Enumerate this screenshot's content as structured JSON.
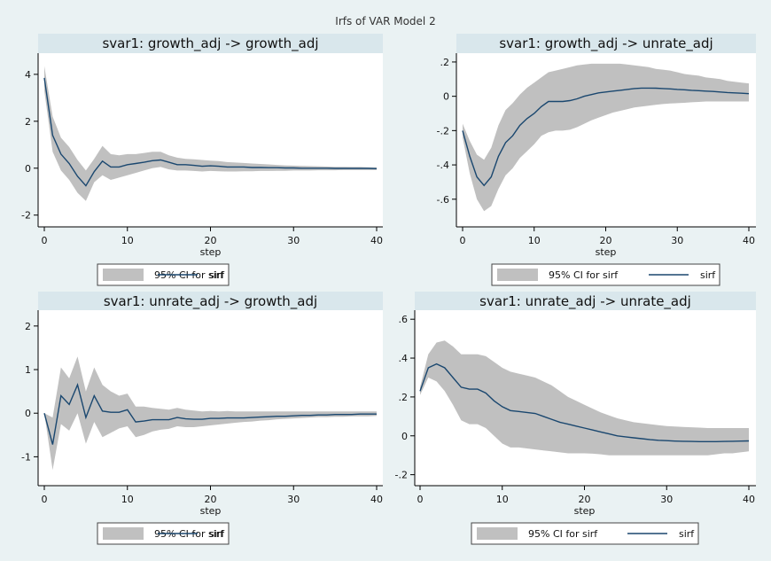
{
  "figure_title": "Irfs of VAR Model 2",
  "colors": {
    "background": "#eaf2f3",
    "plot_bg": "#ffffff",
    "title_band": "#d9e7ec",
    "band": "#c0c0c0",
    "line": "#1a476f",
    "axis": "#000000"
  },
  "chart_data": [
    {
      "type": "line",
      "title": "svar1: growth_adj -> growth_adj",
      "xlabel": "step",
      "ylabel": "",
      "xlim": [
        0,
        40
      ],
      "ylim": [
        -2.2,
        4.6
      ],
      "xticks": [
        0,
        10,
        20,
        30,
        40
      ],
      "yticks": [
        -2,
        0,
        2,
        4
      ],
      "ytick_labels": [
        "-2",
        "0",
        "2",
        "4"
      ],
      "x": [
        0,
        1,
        2,
        3,
        4,
        5,
        6,
        7,
        8,
        9,
        10,
        11,
        12,
        13,
        14,
        15,
        16,
        17,
        18,
        19,
        20,
        21,
        22,
        23,
        24,
        25,
        26,
        27,
        28,
        29,
        30,
        31,
        32,
        33,
        34,
        35,
        36,
        37,
        38,
        39,
        40
      ],
      "series": [
        {
          "name": "sirf",
          "values": [
            3.85,
            1.4,
            0.6,
            0.2,
            -0.35,
            -0.75,
            -0.15,
            0.3,
            0.05,
            0.05,
            0.15,
            0.2,
            0.25,
            0.32,
            0.35,
            0.25,
            0.15,
            0.15,
            0.12,
            0.08,
            0.1,
            0.08,
            0.05,
            0.05,
            0.05,
            0.03,
            0.03,
            0.02,
            0.02,
            0.01,
            0.01,
            0.0,
            0.0,
            0.0,
            0.0,
            -0.01,
            -0.01,
            -0.01,
            -0.01,
            -0.01,
            -0.02
          ]
        },
        {
          "name": "95% CI for sirf",
          "role": "band",
          "lower": [
            3.3,
            0.7,
            -0.1,
            -0.5,
            -1.05,
            -1.4,
            -0.6,
            -0.3,
            -0.5,
            -0.4,
            -0.3,
            -0.2,
            -0.1,
            0.0,
            0.05,
            -0.05,
            -0.1,
            -0.1,
            -0.12,
            -0.14,
            -0.12,
            -0.13,
            -0.14,
            -0.14,
            -0.13,
            -0.13,
            -0.12,
            -0.12,
            -0.11,
            -0.11,
            -0.1,
            -0.1,
            -0.1,
            -0.09,
            -0.09,
            -0.09,
            -0.08,
            -0.08,
            -0.08,
            -0.08,
            -0.08
          ],
          "upper": [
            4.35,
            2.2,
            1.3,
            0.9,
            0.35,
            -0.1,
            0.4,
            0.95,
            0.6,
            0.55,
            0.6,
            0.6,
            0.65,
            0.7,
            0.7,
            0.55,
            0.45,
            0.4,
            0.38,
            0.35,
            0.32,
            0.3,
            0.26,
            0.24,
            0.22,
            0.2,
            0.18,
            0.16,
            0.14,
            0.12,
            0.11,
            0.1,
            0.09,
            0.08,
            0.07,
            0.06,
            0.06,
            0.05,
            0.05,
            0.04,
            0.04
          ]
        }
      ],
      "legend": {
        "position": "bottom",
        "items": [
          "95% CI for sirf",
          "sirf"
        ]
      }
    },
    {
      "type": "line",
      "title": "svar1: growth_adj -> unrate_adj",
      "xlabel": "step",
      "ylabel": "",
      "xlim": [
        0,
        40
      ],
      "ylim": [
        -0.72,
        0.21
      ],
      "xticks": [
        0,
        10,
        20,
        30,
        40
      ],
      "yticks": [
        -0.6,
        -0.4,
        -0.2,
        0,
        0.2
      ],
      "ytick_labels": [
        "-.6",
        "-.4",
        "-.2",
        "0",
        ".2"
      ],
      "x": [
        0,
        1,
        2,
        3,
        4,
        5,
        6,
        7,
        8,
        9,
        10,
        11,
        12,
        13,
        14,
        15,
        16,
        17,
        18,
        19,
        20,
        21,
        22,
        23,
        24,
        25,
        26,
        27,
        28,
        29,
        30,
        31,
        32,
        33,
        34,
        35,
        36,
        37,
        38,
        39,
        40
      ],
      "series": [
        {
          "name": "sirf",
          "values": [
            -0.2,
            -0.35,
            -0.47,
            -0.52,
            -0.47,
            -0.35,
            -0.27,
            -0.23,
            -0.17,
            -0.13,
            -0.1,
            -0.06,
            -0.03,
            -0.03,
            -0.03,
            -0.025,
            -0.015,
            0.0,
            0.01,
            0.02,
            0.025,
            0.03,
            0.035,
            0.04,
            0.045,
            0.048,
            0.048,
            0.047,
            0.045,
            0.043,
            0.04,
            0.038,
            0.035,
            0.033,
            0.03,
            0.028,
            0.025,
            0.022,
            0.02,
            0.018,
            0.015
          ]
        },
        {
          "name": "95% CI for sirf",
          "role": "band",
          "lower": [
            -0.24,
            -0.45,
            -0.6,
            -0.67,
            -0.64,
            -0.54,
            -0.46,
            -0.42,
            -0.36,
            -0.32,
            -0.28,
            -0.23,
            -0.21,
            -0.2,
            -0.2,
            -0.195,
            -0.18,
            -0.16,
            -0.14,
            -0.125,
            -0.11,
            -0.095,
            -0.085,
            -0.075,
            -0.065,
            -0.06,
            -0.055,
            -0.05,
            -0.045,
            -0.042,
            -0.04,
            -0.038,
            -0.035,
            -0.033,
            -0.03,
            -0.03,
            -0.03,
            -0.03,
            -0.03,
            -0.03,
            -0.03
          ]
        },
        {
          "name": "95% CI for sirf upper",
          "role": "band_upper",
          "upper": [
            -0.16,
            -0.26,
            -0.34,
            -0.37,
            -0.3,
            -0.17,
            -0.08,
            -0.04,
            0.01,
            0.05,
            0.08,
            0.11,
            0.14,
            0.15,
            0.16,
            0.17,
            0.18,
            0.185,
            0.19,
            0.19,
            0.19,
            0.19,
            0.19,
            0.185,
            0.18,
            0.175,
            0.17,
            0.16,
            0.155,
            0.15,
            0.14,
            0.13,
            0.125,
            0.12,
            0.11,
            0.105,
            0.1,
            0.09,
            0.085,
            0.08,
            0.075
          ]
        }
      ],
      "legend": {
        "position": "bottom",
        "items": [
          "95% CI for sirf",
          "sirf"
        ]
      }
    },
    {
      "type": "line",
      "title": "svar1: unrate_adj -> growth_adj",
      "xlabel": "step",
      "ylabel": "",
      "xlim": [
        0,
        40
      ],
      "ylim": [
        -1.5,
        2.2
      ],
      "xticks": [
        0,
        10,
        20,
        30,
        40
      ],
      "yticks": [
        -1,
        0,
        1,
        2
      ],
      "ytick_labels": [
        "-1",
        "0",
        "1",
        "2"
      ],
      "x": [
        0,
        1,
        2,
        3,
        4,
        5,
        6,
        7,
        8,
        9,
        10,
        11,
        12,
        13,
        14,
        15,
        16,
        17,
        18,
        19,
        20,
        21,
        22,
        23,
        24,
        25,
        26,
        27,
        28,
        29,
        30,
        31,
        32,
        33,
        34,
        35,
        36,
        37,
        38,
        39,
        40
      ],
      "series": [
        {
          "name": "sirf",
          "values": [
            0.0,
            -0.72,
            0.4,
            0.2,
            0.65,
            -0.1,
            0.4,
            0.05,
            0.02,
            0.02,
            0.08,
            -0.2,
            -0.18,
            -0.15,
            -0.15,
            -0.15,
            -0.1,
            -0.13,
            -0.14,
            -0.14,
            -0.12,
            -0.12,
            -0.11,
            -0.11,
            -0.11,
            -0.1,
            -0.09,
            -0.08,
            -0.07,
            -0.07,
            -0.06,
            -0.05,
            -0.05,
            -0.04,
            -0.04,
            -0.03,
            -0.03,
            -0.03,
            -0.02,
            -0.02,
            -0.02
          ]
        },
        {
          "name": "95% CI for sirf",
          "role": "band",
          "lower": [
            0.0,
            -1.3,
            -0.25,
            -0.4,
            0.0,
            -0.7,
            -0.2,
            -0.55,
            -0.45,
            -0.35,
            -0.3,
            -0.55,
            -0.5,
            -0.42,
            -0.38,
            -0.36,
            -0.3,
            -0.32,
            -0.32,
            -0.3,
            -0.28,
            -0.26,
            -0.24,
            -0.22,
            -0.2,
            -0.19,
            -0.17,
            -0.16,
            -0.14,
            -0.13,
            -0.12,
            -0.11,
            -0.1,
            -0.09,
            -0.09,
            -0.08,
            -0.08,
            -0.07,
            -0.07,
            -0.07,
            -0.06
          ]
        },
        {
          "name": "95% CI for sirf upper",
          "role": "band_upper",
          "upper": [
            0.0,
            -0.1,
            1.05,
            0.8,
            1.3,
            0.5,
            1.05,
            0.65,
            0.5,
            0.4,
            0.45,
            0.15,
            0.15,
            0.12,
            0.1,
            0.08,
            0.12,
            0.08,
            0.06,
            0.04,
            0.05,
            0.04,
            0.05,
            0.04,
            0.04,
            0.04,
            0.04,
            0.04,
            0.04,
            0.04,
            0.04,
            0.04,
            0.04,
            0.04,
            0.04,
            0.04,
            0.04,
            0.04,
            0.04,
            0.04,
            0.04
          ]
        }
      ],
      "legend": {
        "position": "bottom",
        "items": [
          "95% CI for sirf",
          "sirf"
        ]
      }
    },
    {
      "type": "line",
      "title": "svar1: unrate_adj -> unrate_adj",
      "xlabel": "step",
      "ylabel": "",
      "xlim": [
        0,
        40
      ],
      "ylim": [
        -0.22,
        0.61
      ],
      "xticks": [
        0,
        10,
        20,
        30,
        40
      ],
      "yticks": [
        -0.2,
        0,
        0.2,
        0.4,
        0.6
      ],
      "ytick_labels": [
        "-.2",
        "0",
        ".2",
        ".4",
        ".6"
      ],
      "x": [
        0,
        1,
        2,
        3,
        4,
        5,
        6,
        7,
        8,
        9,
        10,
        11,
        12,
        13,
        14,
        15,
        16,
        17,
        18,
        19,
        20,
        21,
        22,
        23,
        24,
        25,
        26,
        27,
        28,
        29,
        30,
        31,
        32,
        33,
        34,
        35,
        36,
        37,
        38,
        39,
        40
      ],
      "series": [
        {
          "name": "sirf",
          "values": [
            0.23,
            0.35,
            0.37,
            0.35,
            0.3,
            0.25,
            0.24,
            0.24,
            0.22,
            0.18,
            0.15,
            0.13,
            0.125,
            0.12,
            0.115,
            0.1,
            0.085,
            0.07,
            0.06,
            0.05,
            0.04,
            0.03,
            0.02,
            0.01,
            0.0,
            -0.005,
            -0.01,
            -0.015,
            -0.02,
            -0.023,
            -0.025,
            -0.027,
            -0.028,
            -0.029,
            -0.03,
            -0.03,
            -0.03,
            -0.029,
            -0.028,
            -0.027,
            -0.026
          ]
        },
        {
          "name": "95% CI for sirf",
          "role": "band",
          "lower": [
            0.21,
            0.3,
            0.28,
            0.23,
            0.16,
            0.08,
            0.06,
            0.06,
            0.04,
            0.0,
            -0.04,
            -0.06,
            -0.06,
            -0.065,
            -0.07,
            -0.075,
            -0.08,
            -0.085,
            -0.09,
            -0.09,
            -0.09,
            -0.092,
            -0.095,
            -0.1,
            -0.1,
            -0.1,
            -0.1,
            -0.1,
            -0.1,
            -0.1,
            -0.1,
            -0.1,
            -0.1,
            -0.1,
            -0.1,
            -0.1,
            -0.095,
            -0.09,
            -0.09,
            -0.085,
            -0.08
          ]
        },
        {
          "name": "95% CI for sirf upper",
          "role": "band_upper",
          "upper": [
            0.25,
            0.42,
            0.48,
            0.49,
            0.46,
            0.42,
            0.42,
            0.42,
            0.41,
            0.38,
            0.35,
            0.33,
            0.32,
            0.31,
            0.3,
            0.28,
            0.26,
            0.23,
            0.2,
            0.18,
            0.16,
            0.14,
            0.12,
            0.105,
            0.09,
            0.08,
            0.07,
            0.065,
            0.06,
            0.055,
            0.05,
            0.048,
            0.046,
            0.044,
            0.042,
            0.04,
            0.04,
            0.04,
            0.04,
            0.04,
            0.04
          ]
        }
      ],
      "legend": {
        "position": "bottom",
        "items": [
          "95% CI for sirf",
          "sirf"
        ]
      }
    }
  ]
}
